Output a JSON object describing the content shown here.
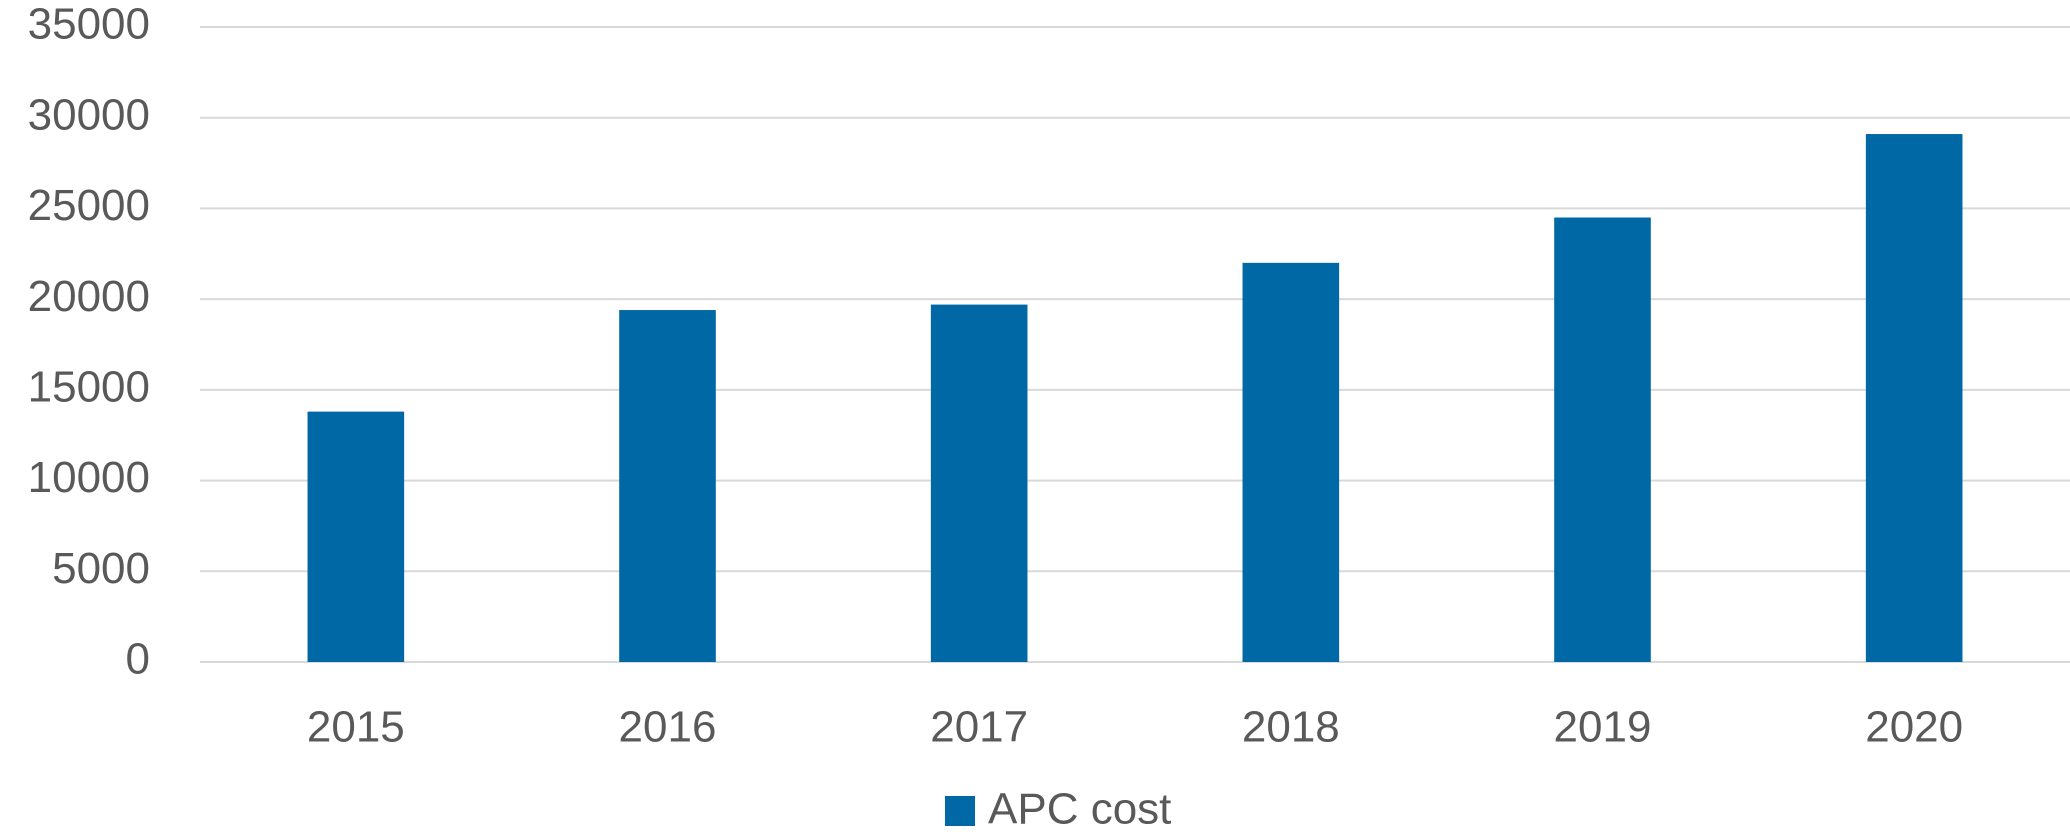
{
  "chart_data": {
    "type": "bar",
    "categories": [
      "2015",
      "2016",
      "2017",
      "2018",
      "2019",
      "2020"
    ],
    "series": [
      {
        "name": "APC cost",
        "color": "#0069a5",
        "values": [
          13800,
          19400,
          19700,
          22000,
          24500,
          29100
        ]
      }
    ],
    "ylim": [
      0,
      35000
    ],
    "yticks": [
      0,
      5000,
      10000,
      15000,
      20000,
      25000,
      30000,
      35000
    ],
    "grid": true,
    "legend": "bottom"
  }
}
